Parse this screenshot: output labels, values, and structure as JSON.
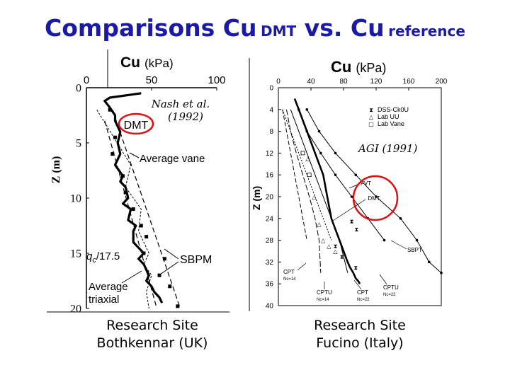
{
  "slide": {
    "title_main": "Comparisons Cu",
    "title_sub1": "DMT",
    "title_vs": " vs. Cu",
    "title_sub2": "reference"
  },
  "chart_data": [
    {
      "type": "line",
      "site": "Bothkennar (UK)",
      "title": "Cu (kPa)",
      "title_parts": [
        "Cu",
        "(kPa)"
      ],
      "xlabel": "Cu (kPa)",
      "ylabel": "Z (m)",
      "xlim": [
        0,
        100
      ],
      "ylim": [
        0,
        20
      ],
      "xticks": [
        0,
        50,
        100
      ],
      "yticks": [
        0,
        5,
        10,
        15,
        20
      ],
      "y_inverted": true,
      "x_axis_position": "top",
      "annotations": {
        "source": "Nash et al. (1992)",
        "source_lines": [
          "Nash et al.",
          "(1992)"
        ],
        "dmt": "DMT",
        "vane": "Average vane",
        "qc": "qc/17.5",
        "sbpm": "SBPM",
        "triaxial": "Average triaxial",
        "triaxial_lines": [
          "Average",
          "triaxial"
        ]
      },
      "series": [
        {
          "name": "DMT",
          "x": [
            42,
            30,
            18,
            14,
            18,
            22,
            22,
            26,
            24,
            26,
            22,
            28,
            26,
            30,
            32,
            28,
            34,
            32,
            38,
            36,
            36,
            40,
            44,
            40,
            44,
            46,
            48,
            46,
            50,
            52,
            56,
            58
          ],
          "y": [
            0.5,
            0.7,
            0.9,
            1.2,
            1.8,
            2.5,
            3,
            4,
            5,
            6,
            7,
            8,
            8.5,
            9,
            10,
            10.5,
            11,
            12,
            12.5,
            13,
            14,
            14.5,
            15,
            15.5,
            16,
            16.5,
            17,
            17.5,
            18,
            18.5,
            19,
            19.5
          ]
        },
        {
          "name": "Average vane",
          "x": [
            20,
            72
          ],
          "y": [
            2,
            20
          ]
        },
        {
          "name": "qc/17.5",
          "x": [
            8,
            34,
            30,
            42,
            40,
            48,
            44,
            50,
            46,
            48
          ],
          "y": [
            2,
            7,
            9,
            11,
            13,
            15,
            16,
            17,
            18.5,
            20
          ]
        },
        {
          "name": "SBPM",
          "x": [
            18,
            22,
            20,
            28,
            30,
            36,
            42,
            46,
            44,
            60,
            56,
            64,
            70
          ],
          "y": [
            2,
            4.5,
            6,
            8,
            9.5,
            11,
            12.5,
            13.5,
            15,
            15.5,
            17,
            18,
            19.8
          ]
        },
        {
          "name": "Average triaxial",
          "x": [
            14,
            54
          ],
          "y": [
            3,
            20
          ]
        }
      ]
    },
    {
      "type": "line",
      "site": "Fucino (Italy)",
      "title": "Cu (kPa)",
      "title_parts": [
        "Cu",
        "(kPa)"
      ],
      "xlabel": "Cu (kPa)",
      "ylabel": "Z (m)",
      "xlim": [
        0,
        200
      ],
      "ylim": [
        0,
        40
      ],
      "xticks": [
        0,
        40,
        80,
        120,
        160,
        200
      ],
      "yticks": [
        0,
        4,
        8,
        12,
        16,
        20,
        24,
        28,
        32,
        36,
        40
      ],
      "y_inverted": true,
      "x_axis_position": "top",
      "legend": [
        "DSS-Ck0U",
        "Lab UU",
        "Lab Vane"
      ],
      "legend_symbols": [
        "⧗",
        "△",
        "□"
      ],
      "annotations": {
        "source": "AGI (1991)",
        "fvt": "FVT",
        "dmt": "DMT",
        "sbpt": "SBPT",
        "cpt14": "CPT Nc=14",
        "cpt14_lines": [
          "CPT",
          "Nc=14"
        ],
        "cptu14": "CPTU Nc=14",
        "cptu14_lines": [
          "CPTU",
          "Nc=14"
        ],
        "cpt22": "CPT Nc=22",
        "cpt22_lines": [
          "CPT",
          "Nc=22"
        ],
        "cptu22": "CPTU Nc=22",
        "cptu22_lines": [
          "CPTU",
          "Nc=22"
        ]
      },
      "series": [
        {
          "name": "DMT",
          "x": [
            20,
            25,
            35,
            45,
            55,
            60,
            65,
            70,
            75,
            80,
            85,
            88,
            92,
            95,
            98,
            100
          ],
          "y": [
            2,
            4,
            8,
            12,
            16,
            20,
            24,
            26,
            28,
            30,
            32,
            33,
            34,
            35,
            35.5,
            36
          ]
        },
        {
          "name": "FVT",
          "x": [
            25,
            35,
            52,
            70,
            90,
            110,
            130
          ],
          "y": [
            4,
            8,
            12,
            16,
            20,
            24,
            28
          ]
        },
        {
          "name": "SBPT",
          "x": [
            35,
            50,
            70,
            95,
            120,
            150,
            170,
            185,
            200
          ],
          "y": [
            4,
            8,
            12,
            16,
            20,
            24,
            28,
            32,
            34
          ]
        },
        {
          "name": "CPT Nc=14",
          "x": [
            15,
            25,
            35,
            45,
            55,
            65,
            75,
            85
          ],
          "y": [
            4,
            8,
            12,
            16,
            20,
            24,
            28,
            34
          ]
        },
        {
          "name": "CPT Nc=22",
          "x": [
            10,
            15,
            22,
            30,
            38,
            45,
            50,
            52
          ],
          "y": [
            4,
            8,
            12,
            16,
            20,
            24,
            28,
            34
          ]
        },
        {
          "name": "CPTU Nc=14",
          "x": [
            5,
            15,
            25,
            35,
            45,
            55,
            65
          ],
          "y": [
            4,
            8,
            12,
            16,
            20,
            24,
            28
          ]
        },
        {
          "name": "CPTU Nc=22",
          "x": [
            5,
            10,
            15,
            20,
            25,
            30,
            35
          ],
          "y": [
            4,
            8,
            12,
            16,
            20,
            24,
            28
          ]
        },
        {
          "name": "DSS-Ck0U",
          "x": [
            90,
            96,
            70,
            78,
            95
          ],
          "y": [
            24.5,
            26,
            29,
            31,
            33
          ]
        },
        {
          "name": "Lab UU",
          "x": [
            36,
            44,
            50,
            55,
            62,
            70
          ],
          "y": [
            13,
            20,
            25,
            28,
            29,
            30
          ]
        },
        {
          "name": "Lab Vane",
          "x": [
            30,
            38
          ],
          "y": [
            12,
            16
          ]
        }
      ]
    }
  ],
  "captions": {
    "left_line1": "Research Site",
    "left_line2": "Bothkennar (UK)",
    "right_line1": "Research Site",
    "right_line2": "Fucino (Italy)"
  }
}
